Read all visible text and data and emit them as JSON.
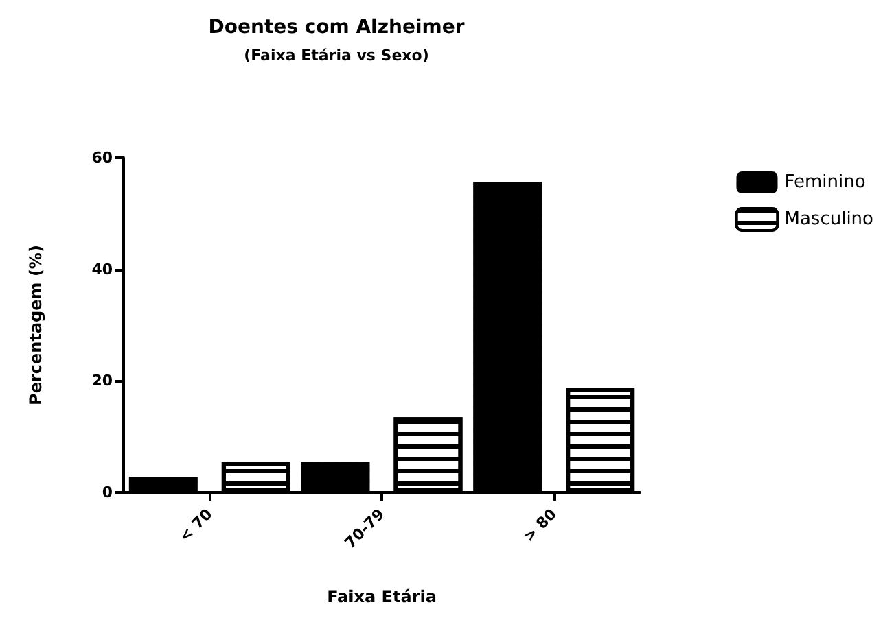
{
  "chart_data": {
    "type": "bar",
    "title": "Doentes com Alzheimer",
    "subtitle": "(Faixa Etária vs Sexo)",
    "xlabel": "Faixa Etária",
    "ylabel": "Percentagem (%)",
    "categories": [
      "< 70",
      "70-79",
      "> 80"
    ],
    "series": [
      {
        "name": "Feminino",
        "color": "#000000",
        "values": [
          2.8,
          5.5,
          55.7
        ]
      },
      {
        "name": "Masculino",
        "color": "#000000",
        "values": [
          5.5,
          13.5,
          18.7
        ]
      }
    ],
    "ylim": [
      0,
      60
    ],
    "yticks": [
      0,
      20,
      40,
      60
    ],
    "grid": false,
    "legend": "right"
  }
}
